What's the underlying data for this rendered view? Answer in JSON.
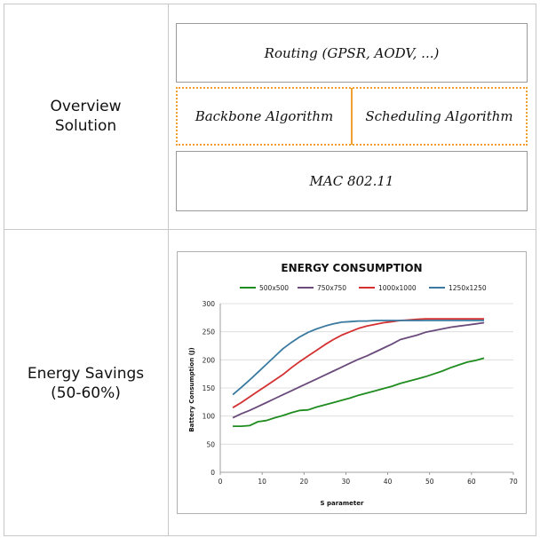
{
  "table": {
    "row1_label": "Overview\nSolution",
    "row2_label": "Energy Savings\n(50-60%)"
  },
  "diagram": {
    "routing": "Routing (GPSR, AODV, ...)",
    "backbone": "Backbone Algorithm",
    "scheduling": "Scheduling Algorithm",
    "mac": "MAC 802.11"
  },
  "chart_data": {
    "type": "line",
    "title": "ENERGY CONSUMPTION",
    "xlabel": "S parameter",
    "ylabel": "Battery Consumption (J)",
    "xlim": [
      0,
      70
    ],
    "ylim": [
      0,
      300
    ],
    "xticks": [
      0,
      10,
      20,
      30,
      40,
      50,
      60,
      70
    ],
    "yticks": [
      0,
      50,
      100,
      150,
      200,
      250,
      300
    ],
    "legend_position": "top",
    "series": [
      {
        "name": "500x500",
        "color": "#1e8c1e",
        "x": [
          3,
          5,
          7,
          9,
          11,
          13,
          15,
          17,
          19,
          21,
          23,
          25,
          27,
          29,
          31,
          33,
          35,
          37,
          39,
          41,
          43,
          45,
          47,
          49,
          51,
          53,
          55,
          57,
          59,
          61,
          63
        ],
        "y": [
          82,
          82,
          83,
          90,
          92,
          97,
          101,
          106,
          110,
          111,
          116,
          120,
          124,
          128,
          132,
          137,
          141,
          145,
          149,
          153,
          158,
          162,
          166,
          170,
          175,
          180,
          186,
          191,
          196,
          199,
          203
        ]
      },
      {
        "name": "750x750",
        "color": "#6a4a7a",
        "x": [
          3,
          5,
          7,
          9,
          11,
          13,
          15,
          17,
          19,
          21,
          23,
          25,
          27,
          29,
          31,
          33,
          35,
          37,
          39,
          41,
          43,
          45,
          47,
          49,
          51,
          53,
          55,
          57,
          59,
          61,
          63
        ],
        "y": [
          97,
          104,
          110,
          117,
          124,
          131,
          138,
          145,
          152,
          159,
          166,
          173,
          180,
          187,
          194,
          201,
          207,
          214,
          221,
          228,
          236,
          240,
          244,
          249,
          252,
          255,
          258,
          260,
          262,
          264,
          266
        ]
      },
      {
        "name": "1000x1000",
        "color": "#d43030",
        "x": [
          3,
          5,
          7,
          9,
          11,
          13,
          15,
          17,
          19,
          21,
          23,
          25,
          27,
          29,
          31,
          33,
          35,
          37,
          39,
          41,
          43,
          45,
          47,
          49,
          51,
          53,
          55,
          57,
          59,
          61,
          63
        ],
        "y": [
          115,
          124,
          134,
          144,
          154,
          164,
          174,
          186,
          197,
          207,
          217,
          227,
          236,
          244,
          250,
          256,
          260,
          263,
          266,
          268,
          270,
          271,
          272,
          273,
          273,
          273,
          273,
          273,
          273,
          273,
          273
        ]
      },
      {
        "name": "1250x1250",
        "color": "#3a7aa0",
        "x": [
          3,
          5,
          7,
          9,
          11,
          13,
          15,
          17,
          19,
          21,
          23,
          25,
          27,
          29,
          31,
          33,
          35,
          37,
          39,
          41,
          43,
          45,
          47,
          49,
          51,
          53,
          55,
          57,
          59,
          61,
          63
        ],
        "y": [
          138,
          151,
          164,
          178,
          192,
          206,
          220,
          231,
          241,
          249,
          255,
          260,
          264,
          267,
          268,
          269,
          269,
          270,
          270,
          270,
          270,
          270,
          270,
          270,
          270,
          270,
          270,
          270,
          270,
          270,
          270
        ]
      }
    ]
  }
}
